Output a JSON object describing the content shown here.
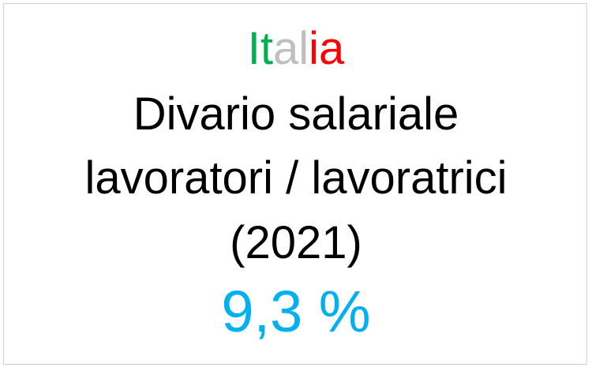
{
  "title": {
    "parts": [
      {
        "text": "It",
        "color": "#00B050"
      },
      {
        "text": "al",
        "color": "#BFBFBF"
      },
      {
        "text": "ia",
        "color": "#FF0000"
      }
    ]
  },
  "subtitle_lines": [
    "Divario salariale",
    "lavoratori / lavoratrici",
    "(2021)"
  ],
  "value": {
    "text": "9,3 %",
    "color": "#00B0F0"
  }
}
